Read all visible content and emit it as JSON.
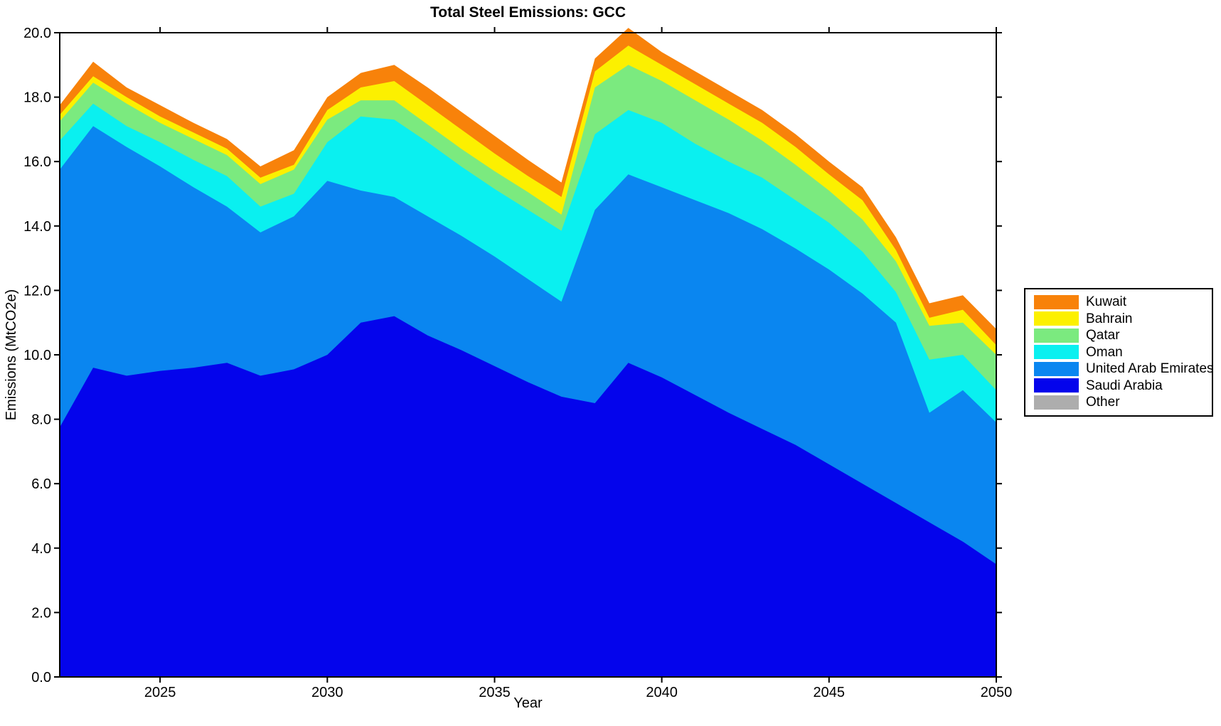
{
  "chart_data": {
    "type": "area",
    "stacked": true,
    "title": "Total Steel Emissions: GCC",
    "xlabel": "Year",
    "ylabel": "Emissions (MtCO2e)",
    "xlim": [
      2022,
      2050
    ],
    "ylim": [
      0,
      20
    ],
    "grid": false,
    "legend_position": "right-outside",
    "x": [
      2022,
      2023,
      2024,
      2025,
      2026,
      2027,
      2028,
      2029,
      2030,
      2031,
      2032,
      2033,
      2034,
      2035,
      2036,
      2037,
      2038,
      2039,
      2040,
      2041,
      2042,
      2043,
      2044,
      2045,
      2046,
      2047,
      2048,
      2049,
      2050
    ],
    "xticks": [
      2025,
      2030,
      2035,
      2040,
      2045,
      2050
    ],
    "yticks": [
      0,
      2,
      4,
      6,
      8,
      10,
      12,
      14,
      16,
      18,
      20
    ],
    "ytick_labels": [
      "0.0",
      "2.0",
      "4.0",
      "6.0",
      "8.0",
      "10.0",
      "12.0",
      "14.0",
      "16.0",
      "18.0",
      "20.0"
    ],
    "series": [
      {
        "name": "Other",
        "color": "#ADADAD",
        "values": [
          0,
          0,
          0,
          0,
          0,
          0,
          0,
          0,
          0,
          0,
          0,
          0,
          0,
          0,
          0,
          0,
          0,
          0,
          0,
          0,
          0,
          0,
          0,
          0,
          0,
          0,
          0,
          0,
          0
        ]
      },
      {
        "name": "Saudi Arabia",
        "color": "#0404EC",
        "values": [
          7.75,
          9.6,
          9.35,
          9.5,
          9.6,
          9.75,
          9.35,
          9.55,
          10.0,
          11.0,
          11.2,
          10.6,
          10.15,
          9.65,
          9.15,
          8.7,
          8.5,
          9.75,
          9.3,
          8.75,
          8.2,
          7.7,
          7.2,
          6.6,
          6.0,
          5.4,
          4.8,
          4.2,
          3.5
        ]
      },
      {
        "name": "United Arab Emirates",
        "color": "#0A86F0",
        "values": [
          8.0,
          7.5,
          7.1,
          6.35,
          5.6,
          4.85,
          4.45,
          4.75,
          5.4,
          4.1,
          3.7,
          3.7,
          3.55,
          3.4,
          3.2,
          2.95,
          6.0,
          5.85,
          5.9,
          6.05,
          6.2,
          6.2,
          6.1,
          6.05,
          5.9,
          5.6,
          3.4,
          4.7,
          4.4
        ]
      },
      {
        "name": "Oman",
        "color": "#0AF0F0",
        "values": [
          0.9,
          0.7,
          0.65,
          0.75,
          0.85,
          0.95,
          0.8,
          0.7,
          1.2,
          2.3,
          2.4,
          2.3,
          2.15,
          2.1,
          2.15,
          2.2,
          2.35,
          2.0,
          2.0,
          1.75,
          1.6,
          1.6,
          1.5,
          1.45,
          1.3,
          0.95,
          1.65,
          1.1,
          1.0
        ]
      },
      {
        "name": "Qatar",
        "color": "#7BEA7F",
        "values": [
          0.6,
          0.65,
          0.7,
          0.6,
          0.65,
          0.65,
          0.7,
          0.75,
          0.7,
          0.5,
          0.6,
          0.55,
          0.55,
          0.55,
          0.55,
          0.5,
          1.45,
          1.4,
          1.3,
          1.35,
          1.3,
          1.15,
          1.1,
          1.0,
          1.0,
          0.95,
          1.05,
          1.0,
          1.1
        ]
      },
      {
        "name": "Bahrain",
        "color": "#FCF000",
        "values": [
          0.2,
          0.2,
          0.2,
          0.2,
          0.2,
          0.2,
          0.2,
          0.15,
          0.3,
          0.4,
          0.6,
          0.6,
          0.6,
          0.55,
          0.5,
          0.55,
          0.5,
          0.6,
          0.5,
          0.5,
          0.5,
          0.55,
          0.55,
          0.5,
          0.6,
          0.35,
          0.25,
          0.4,
          0.3
        ]
      },
      {
        "name": "Kuwait",
        "color": "#F8820A",
        "values": [
          0.3,
          0.45,
          0.3,
          0.35,
          0.3,
          0.3,
          0.35,
          0.45,
          0.4,
          0.45,
          0.5,
          0.55,
          0.55,
          0.55,
          0.5,
          0.45,
          0.4,
          0.55,
          0.4,
          0.4,
          0.4,
          0.4,
          0.4,
          0.4,
          0.4,
          0.4,
          0.45,
          0.45,
          0.5
        ]
      }
    ]
  },
  "legend": {
    "items": [
      {
        "label": "Kuwait",
        "color": "#F8820A"
      },
      {
        "label": "Bahrain",
        "color": "#FCF000"
      },
      {
        "label": "Qatar",
        "color": "#7BEA7F"
      },
      {
        "label": "Oman",
        "color": "#0AF0F0"
      },
      {
        "label": "United Arab Emirates",
        "color": "#0A86F0"
      },
      {
        "label": "Saudi Arabia",
        "color": "#0404EC"
      },
      {
        "label": "Other",
        "color": "#ADADAD"
      }
    ]
  },
  "style": {
    "axis_color": "#000000",
    "text_color": "#000000",
    "background": "#ffffff"
  }
}
